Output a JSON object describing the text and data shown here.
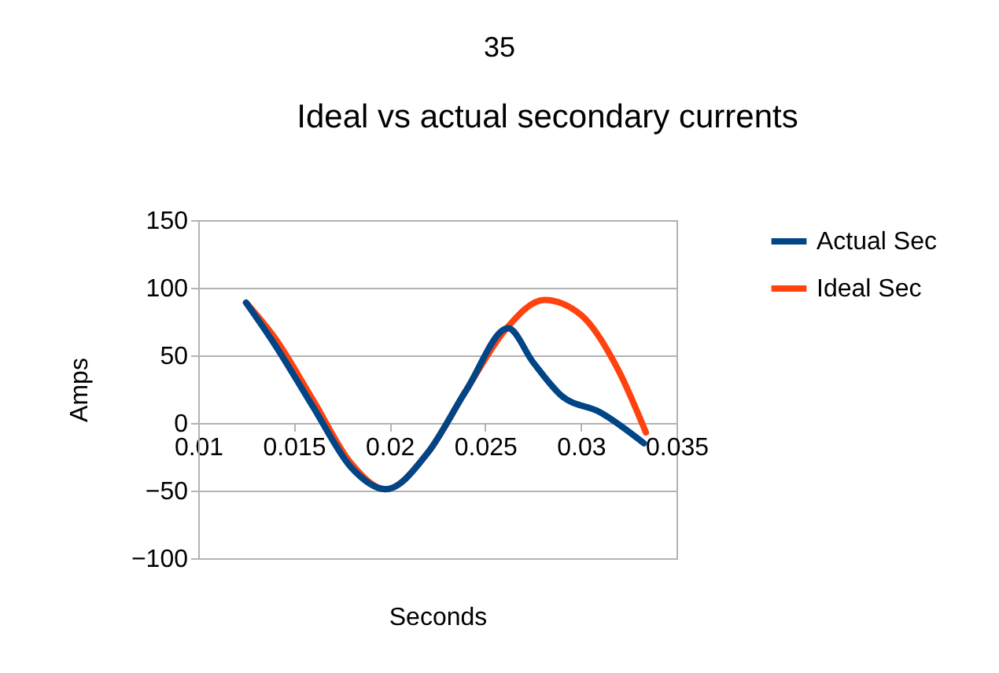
{
  "chart_data": {
    "type": "line",
    "title": "Ideal vs actual secondary currents",
    "xlabel": "Seconds",
    "ylabel": "Amps",
    "annotations": [
      "35"
    ],
    "xlim": [
      0.01,
      0.035
    ],
    "xticks": [
      0.01,
      0.015,
      0.02,
      0.025,
      0.03,
      0.035
    ],
    "ylim": [
      -100,
      150
    ],
    "yticks": [
      -100,
      -50,
      0,
      50,
      100,
      150
    ],
    "grid": "y",
    "legend": "right",
    "marker": "none",
    "line_style": "solid",
    "series": [
      {
        "name": "Actual Sec",
        "color": "#004586",
        "x": [
          0.0125,
          0.014,
          0.016,
          0.018,
          0.0198,
          0.022,
          0.024,
          0.0262,
          0.0275,
          0.029,
          0.031,
          0.0333
        ],
        "values": [
          89,
          58,
          12,
          -33,
          -49,
          -22,
          24,
          70,
          45,
          20,
          8,
          -15
        ]
      },
      {
        "name": "Ideal Sec",
        "color": "#ff420e",
        "x": [
          0.0125,
          0.014,
          0.016,
          0.018,
          0.0198,
          0.022,
          0.024,
          0.026,
          0.0281,
          0.03,
          0.032,
          0.0334
        ],
        "values": [
          89,
          63,
          17,
          -30,
          -49,
          -22,
          24,
          68,
          91,
          80,
          38,
          -7
        ]
      }
    ]
  }
}
